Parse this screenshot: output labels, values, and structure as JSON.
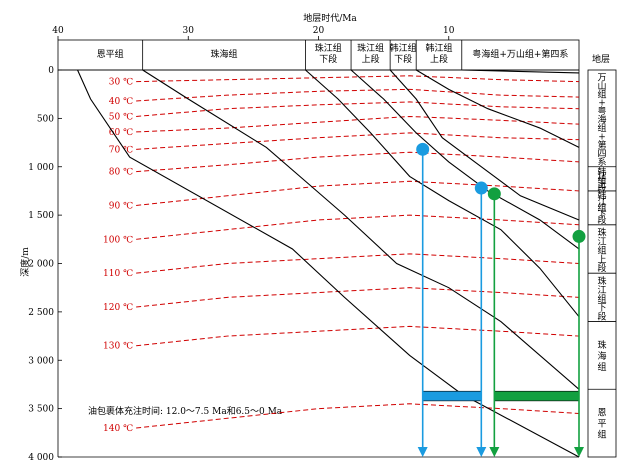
{
  "title": "地层时代/Ma",
  "y_axis_label": "深度/m",
  "strata_header": "地层",
  "note": "油包裹体充注时间: 12.0～7.5 Ma和6.5～0 Ma",
  "colors": {
    "axis": "#000000",
    "isotherm": "#d00000",
    "blue": "#1a9be0",
    "green": "#12a040"
  },
  "chart_data": {
    "type": "burial-history",
    "x_axis": {
      "label": "地层时代/Ma",
      "range": [
        40,
        0
      ],
      "ticks": [
        40,
        30,
        20,
        10
      ]
    },
    "y_axis": {
      "label": "深度/m",
      "range": [
        0,
        4000
      ],
      "ticks": [
        0,
        500,
        1000,
        1500,
        2000,
        2500,
        3000,
        3500,
        4000
      ],
      "tick_labels": [
        "0",
        "500",
        "1 000",
        "1 500",
        "2 000",
        "2 500",
        "3 000",
        "3 500",
        "4 000"
      ]
    },
    "formation_bands": [
      {
        "label": "恩平组",
        "from": 38.5,
        "to": 33.5
      },
      {
        "label": "珠海组",
        "from": 33.5,
        "to": 21.0
      },
      {
        "label": "珠江组\n下段",
        "from": 21.0,
        "to": 17.5
      },
      {
        "label": "珠江组\n上段",
        "from": 17.5,
        "to": 14.5
      },
      {
        "label": "韩江组\n下段",
        "from": 14.5,
        "to": 12.5
      },
      {
        "label": "韩江组\n上段",
        "from": 12.5,
        "to": 9.0
      },
      {
        "label": "粤海组+万山组+第四系",
        "from": 9.0,
        "to": 0
      }
    ],
    "burial_curves": [
      {
        "label": "base-enping",
        "points": [
          [
            38.5,
            0
          ],
          [
            37.5,
            300
          ],
          [
            36.0,
            600
          ],
          [
            34.5,
            900
          ],
          [
            22.0,
            1850
          ],
          [
            18.0,
            2350
          ],
          [
            13.0,
            2950
          ],
          [
            9.0,
            3350
          ],
          [
            0,
            4000
          ]
        ]
      },
      {
        "label": "base-zhuhai",
        "points": [
          [
            33.5,
            0
          ],
          [
            30.0,
            300
          ],
          [
            24.0,
            800
          ],
          [
            21.0,
            1150
          ],
          [
            18.0,
            1500
          ],
          [
            14.0,
            2000
          ],
          [
            10.0,
            2250
          ],
          [
            6.0,
            2600
          ],
          [
            0,
            3300
          ]
        ]
      },
      {
        "label": "base-zhujiang-lower",
        "points": [
          [
            21.0,
            0
          ],
          [
            18.5,
            300
          ],
          [
            16.0,
            650
          ],
          [
            13.0,
            1100
          ],
          [
            10.0,
            1350
          ],
          [
            6.0,
            1650
          ],
          [
            3.0,
            2050
          ],
          [
            0,
            2550
          ]
        ]
      },
      {
        "label": "base-zhujiang-upper",
        "points": [
          [
            17.5,
            0
          ],
          [
            15.0,
            300
          ],
          [
            12.5,
            650
          ],
          [
            10.0,
            950
          ],
          [
            7.0,
            1250
          ],
          [
            3.0,
            1550
          ],
          [
            0,
            1850
          ]
        ]
      },
      {
        "label": "base-hanjiang-lower",
        "points": [
          [
            14.5,
            0
          ],
          [
            12.5,
            300
          ],
          [
            10.5,
            700
          ],
          [
            8.0,
            950
          ],
          [
            4.5,
            1300
          ],
          [
            0,
            1550
          ]
        ]
      },
      {
        "label": "base-hanjiang-upper",
        "points": [
          [
            12.5,
            0
          ],
          [
            10.0,
            200
          ],
          [
            7.0,
            400
          ],
          [
            3.0,
            600
          ],
          [
            0,
            800
          ]
        ]
      },
      {
        "label": "top",
        "points": [
          [
            9.0,
            0
          ],
          [
            0,
            30
          ]
        ]
      }
    ],
    "isotherms": [
      {
        "label": "30 ℃",
        "depths": [
          120,
          100,
          80,
          60,
          100,
          120
        ]
      },
      {
        "label": "40 ℃",
        "depths": [
          320,
          260,
          220,
          200,
          260,
          280
        ]
      },
      {
        "label": "50 ℃",
        "depths": [
          480,
          400,
          360,
          330,
          380,
          400
        ]
      },
      {
        "label": "60 ℃",
        "depths": [
          640,
          600,
          540,
          480,
          520,
          560
        ]
      },
      {
        "label": "70 ℃",
        "depths": [
          820,
          760,
          700,
          650,
          700,
          720
        ]
      },
      {
        "label": "80 ℃",
        "depths": [
          1050,
          980,
          900,
          850,
          900,
          950
        ]
      },
      {
        "label": "90 ℃",
        "depths": [
          1400,
          1300,
          1200,
          1150,
          1200,
          1250
        ]
      },
      {
        "label": "100 ℃",
        "depths": [
          1750,
          1650,
          1550,
          1500,
          1550,
          1600
        ]
      },
      {
        "label": "110 ℃",
        "depths": [
          2100,
          2000,
          1950,
          1900,
          1950,
          2000
        ]
      },
      {
        "label": "120 ℃",
        "depths": [
          2450,
          2350,
          2300,
          2250,
          2300,
          2350
        ]
      },
      {
        "label": "130 ℃",
        "depths": [
          2850,
          2750,
          2700,
          2650,
          2700,
          2750
        ]
      },
      {
        "label": "140 ℃",
        "depths": [
          3700,
          3600,
          3500,
          3450,
          3500,
          3550
        ]
      }
    ],
    "isotherm_ages": [
      34,
      27,
      20,
      13,
      6,
      0
    ],
    "charge_points": [
      {
        "color": "blue",
        "age": 12.0,
        "depth": 820
      },
      {
        "color": "blue",
        "age": 7.5,
        "depth": 1220
      },
      {
        "color": "green",
        "age": 6.5,
        "depth": 1280
      },
      {
        "color": "green",
        "age": 0,
        "depth": 1720
      }
    ],
    "charge_windows": [
      {
        "color": "blue",
        "from": 12.0,
        "to": 7.5,
        "depth_top": 3320,
        "depth_bottom": 3420
      },
      {
        "color": "green",
        "from": 6.5,
        "to": 0,
        "depth_top": 3320,
        "depth_bottom": 3420
      }
    ]
  },
  "right_strata": [
    {
      "label": "万山组+粤海组+第四系",
      "from": 0,
      "to": 1000
    },
    {
      "label": "韩江组上段",
      "from": 1000,
      "to": 1250
    },
    {
      "label": "韩江组下段",
      "from": 1250,
      "to": 1600
    },
    {
      "label": "珠江组上段",
      "from": 1600,
      "to": 2100
    },
    {
      "label": "珠江组下段",
      "from": 2100,
      "to": 2600
    },
    {
      "label": "珠海组",
      "from": 2600,
      "to": 3300
    },
    {
      "label": "恩平组",
      "from": 3300,
      "to": 4000
    }
  ]
}
